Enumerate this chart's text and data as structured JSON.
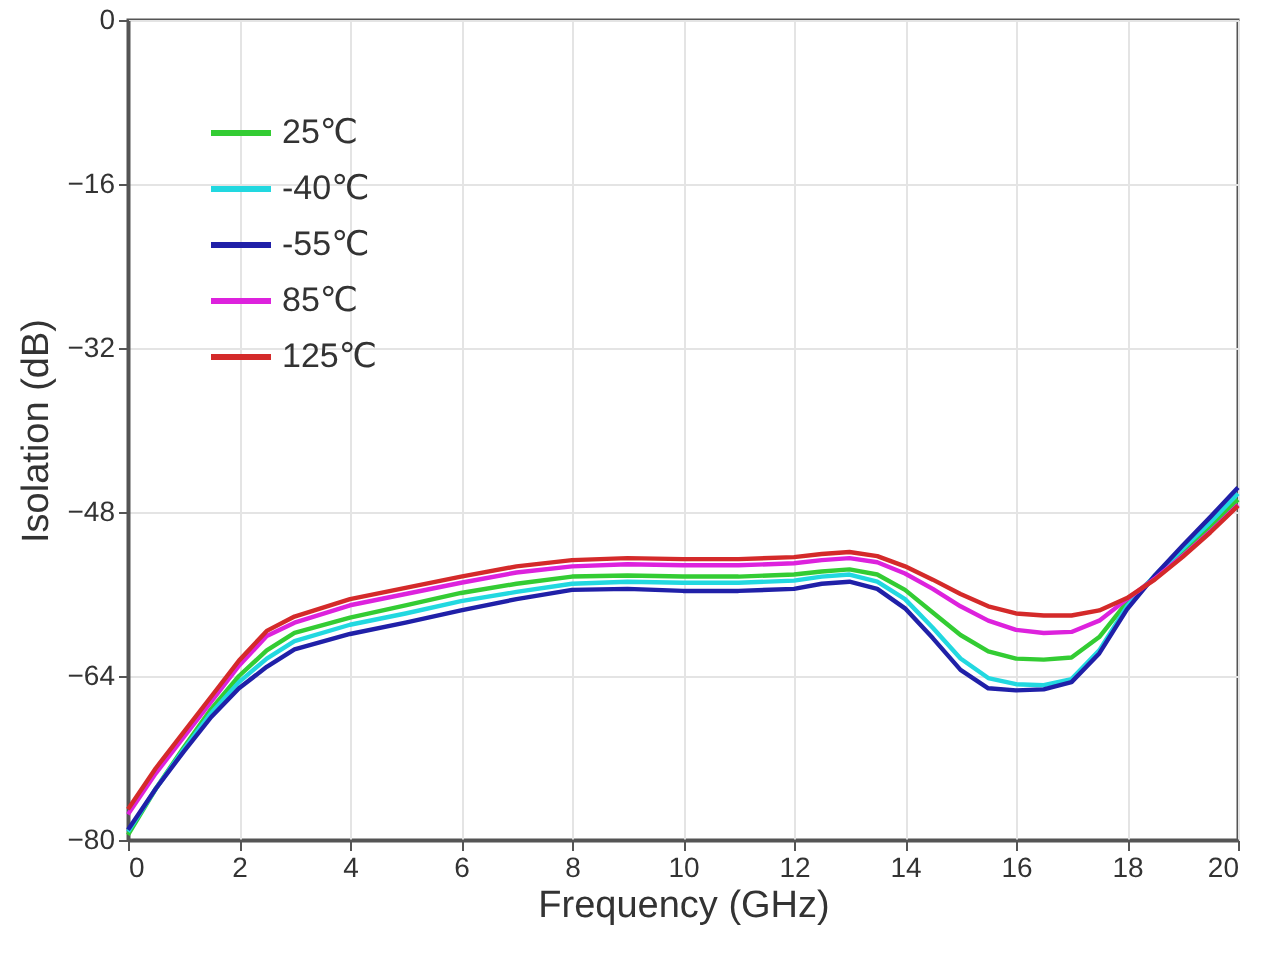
{
  "chart_data": {
    "type": "line",
    "xlabel": "Frequency  (GHz)",
    "ylabel": "Isolation (dB)",
    "x": [
      0,
      0.5,
      1,
      1.5,
      2,
      2.5,
      3,
      4,
      5,
      6,
      7,
      8,
      9,
      10,
      11,
      12,
      12.5,
      13,
      13.5,
      14,
      14.5,
      15,
      15.5,
      16,
      16.5,
      17,
      17.5,
      18,
      18.5,
      19,
      19.5,
      20
    ],
    "series": [
      {
        "name": "25℃",
        "color": "#33cc33",
        "values": [
          -79.5,
          -75,
          -71,
          -67.2,
          -64,
          -61.5,
          -59.8,
          -58.3,
          -57.1,
          -55.9,
          -55,
          -54.3,
          -54.2,
          -54.3,
          -54.3,
          -54.1,
          -53.8,
          -53.6,
          -54.1,
          -55.6,
          -57.8,
          -60,
          -61.6,
          -62.3,
          -62.4,
          -62.2,
          -60.2,
          -56.8,
          -54.3,
          -51.9,
          -49.4,
          -46.8
        ]
      },
      {
        "name": "-40℃",
        "color": "#22d8e0",
        "values": [
          -79.2,
          -75,
          -71.2,
          -67.6,
          -64.6,
          -62.3,
          -60.6,
          -59,
          -57.9,
          -56.7,
          -55.8,
          -55,
          -54.8,
          -54.9,
          -54.9,
          -54.7,
          -54.3,
          -54.1,
          -54.8,
          -56.5,
          -59.3,
          -62.3,
          -64.2,
          -64.8,
          -64.9,
          -64.3,
          -61.5,
          -57.2,
          -54.2,
          -51.6,
          -49,
          -46.2
        ]
      },
      {
        "name": "-55℃",
        "color": "#2020a8",
        "values": [
          -79,
          -75,
          -71.4,
          -68,
          -65.2,
          -63.1,
          -61.4,
          -59.9,
          -58.8,
          -57.6,
          -56.5,
          -55.6,
          -55.5,
          -55.7,
          -55.7,
          -55.5,
          -55,
          -54.8,
          -55.5,
          -57.4,
          -60.3,
          -63.4,
          -65.2,
          -65.4,
          -65.3,
          -64.6,
          -61.8,
          -57.5,
          -54.2,
          -51.3,
          -48.5,
          -45.6
        ]
      },
      {
        "name": "85℃",
        "color": "#dd22dd",
        "values": [
          -77.5,
          -73.5,
          -70,
          -66.5,
          -63,
          -60.1,
          -58.8,
          -57.1,
          -56,
          -54.9,
          -53.9,
          -53.3,
          -53.1,
          -53.2,
          -53.2,
          -53,
          -52.7,
          -52.5,
          -52.9,
          -54,
          -55.5,
          -57.2,
          -58.6,
          -59.5,
          -59.8,
          -59.7,
          -58.6,
          -56.5,
          -54.5,
          -52.3,
          -49.9,
          -47.3
        ]
      },
      {
        "name": "125℃",
        "color": "#d42a2a",
        "values": [
          -77,
          -73,
          -69.5,
          -66,
          -62.5,
          -59.6,
          -58.2,
          -56.5,
          -55.4,
          -54.3,
          -53.3,
          -52.7,
          -52.5,
          -52.6,
          -52.6,
          -52.4,
          -52.1,
          -51.9,
          -52.3,
          -53.3,
          -54.6,
          -56,
          -57.2,
          -57.9,
          -58.1,
          -58.1,
          -57.6,
          -56.4,
          -54.6,
          -52.4,
          -50,
          -47.4
        ]
      }
    ],
    "xlim": [
      0,
      20
    ],
    "xticks": [
      0,
      2,
      4,
      6,
      8,
      10,
      12,
      14,
      16,
      18,
      20
    ],
    "ylim": [
      -80,
      0
    ],
    "yticks": [
      -80,
      -64,
      -48,
      -32,
      -16,
      0
    ],
    "grid": true,
    "legend": "top left",
    "line_style": "solid",
    "marker": "none"
  }
}
